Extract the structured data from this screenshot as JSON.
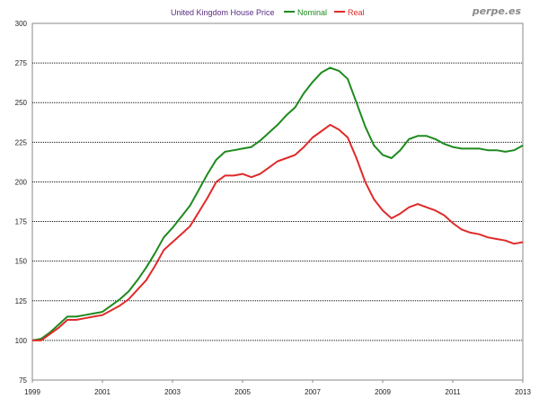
{
  "chart_data": {
    "type": "line",
    "title": "United Kingdom House Price",
    "watermark": "perpe.es",
    "xlabel": "",
    "ylabel": "",
    "ylim": [
      75,
      300
    ],
    "xlim": [
      1999,
      2013
    ],
    "grid": true,
    "legend_position": "top",
    "yticks": [
      "300",
      "275",
      "250",
      "225",
      "200",
      "175",
      "150",
      "125",
      "100",
      "75"
    ],
    "xticks": [
      {
        "value": 1999,
        "label": "1999"
      },
      {
        "value": 2001,
        "label": "2001"
      },
      {
        "value": 2003,
        "label": "2003"
      },
      {
        "value": 2005,
        "label": "2005"
      },
      {
        "value": 2007,
        "label": "2007"
      },
      {
        "value": 2009,
        "label": "2009"
      },
      {
        "value": 2011,
        "label": "2011"
      },
      {
        "value": 2013,
        "label": "2013"
      }
    ],
    "series": [
      {
        "name": "Nominal",
        "color": "#1e8a1e",
        "points": [
          [
            1999.0,
            100
          ],
          [
            1999.25,
            101
          ],
          [
            1999.5,
            105
          ],
          [
            1999.75,
            110
          ],
          [
            2000.0,
            115
          ],
          [
            2000.25,
            115
          ],
          [
            2000.5,
            116
          ],
          [
            2000.75,
            117
          ],
          [
            2001.0,
            118
          ],
          [
            2001.25,
            122
          ],
          [
            2001.5,
            126
          ],
          [
            2001.75,
            131
          ],
          [
            2002.0,
            138
          ],
          [
            2002.25,
            146
          ],
          [
            2002.5,
            155
          ],
          [
            2002.75,
            165
          ],
          [
            2003.0,
            171
          ],
          [
            2003.25,
            178
          ],
          [
            2003.5,
            185
          ],
          [
            2003.75,
            195
          ],
          [
            2004.0,
            205
          ],
          [
            2004.25,
            214
          ],
          [
            2004.5,
            219
          ],
          [
            2004.75,
            220
          ],
          [
            2005.0,
            221
          ],
          [
            2005.25,
            222
          ],
          [
            2005.5,
            226
          ],
          [
            2005.75,
            231
          ],
          [
            2006.0,
            236
          ],
          [
            2006.25,
            242
          ],
          [
            2006.5,
            247
          ],
          [
            2006.75,
            256
          ],
          [
            2007.0,
            263
          ],
          [
            2007.25,
            269
          ],
          [
            2007.5,
            272
          ],
          [
            2007.75,
            270
          ],
          [
            2008.0,
            265
          ],
          [
            2008.25,
            250
          ],
          [
            2008.5,
            235
          ],
          [
            2008.75,
            223
          ],
          [
            2009.0,
            217
          ],
          [
            2009.25,
            215
          ],
          [
            2009.5,
            220
          ],
          [
            2009.75,
            227
          ],
          [
            2010.0,
            229
          ],
          [
            2010.25,
            229
          ],
          [
            2010.5,
            227
          ],
          [
            2010.75,
            224
          ],
          [
            2011.0,
            222
          ],
          [
            2011.25,
            221
          ],
          [
            2011.5,
            221
          ],
          [
            2011.75,
            221
          ],
          [
            2012.0,
            220
          ],
          [
            2012.25,
            220
          ],
          [
            2012.5,
            219
          ],
          [
            2012.75,
            220
          ],
          [
            2013.0,
            223
          ]
        ]
      },
      {
        "name": "Real",
        "color": "#e02a2a",
        "points": [
          [
            1999.0,
            100
          ],
          [
            1999.25,
            100
          ],
          [
            1999.5,
            104
          ],
          [
            1999.75,
            108
          ],
          [
            2000.0,
            113
          ],
          [
            2000.25,
            113
          ],
          [
            2000.5,
            114
          ],
          [
            2000.75,
            115
          ],
          [
            2001.0,
            116
          ],
          [
            2001.25,
            119
          ],
          [
            2001.5,
            122
          ],
          [
            2001.75,
            126
          ],
          [
            2002.0,
            132
          ],
          [
            2002.25,
            138
          ],
          [
            2002.5,
            147
          ],
          [
            2002.75,
            157
          ],
          [
            2003.0,
            162
          ],
          [
            2003.25,
            167
          ],
          [
            2003.5,
            172
          ],
          [
            2003.75,
            181
          ],
          [
            2004.0,
            190
          ],
          [
            2004.25,
            200
          ],
          [
            2004.5,
            204
          ],
          [
            2004.75,
            204
          ],
          [
            2005.0,
            205
          ],
          [
            2005.25,
            203
          ],
          [
            2005.5,
            205
          ],
          [
            2005.75,
            209
          ],
          [
            2006.0,
            213
          ],
          [
            2006.25,
            215
          ],
          [
            2006.5,
            217
          ],
          [
            2006.75,
            222
          ],
          [
            2007.0,
            228
          ],
          [
            2007.25,
            232
          ],
          [
            2007.5,
            236
          ],
          [
            2007.75,
            233
          ],
          [
            2008.0,
            228
          ],
          [
            2008.25,
            215
          ],
          [
            2008.5,
            200
          ],
          [
            2008.75,
            189
          ],
          [
            2009.0,
            182
          ],
          [
            2009.25,
            177
          ],
          [
            2009.5,
            180
          ],
          [
            2009.75,
            184
          ],
          [
            2010.0,
            186
          ],
          [
            2010.25,
            184
          ],
          [
            2010.5,
            182
          ],
          [
            2010.75,
            179
          ],
          [
            2011.0,
            174
          ],
          [
            2011.25,
            170
          ],
          [
            2011.5,
            168
          ],
          [
            2011.75,
            167
          ],
          [
            2012.0,
            165
          ],
          [
            2012.25,
            164
          ],
          [
            2012.5,
            163
          ],
          [
            2012.75,
            161
          ],
          [
            2013.0,
            162
          ]
        ]
      }
    ]
  }
}
